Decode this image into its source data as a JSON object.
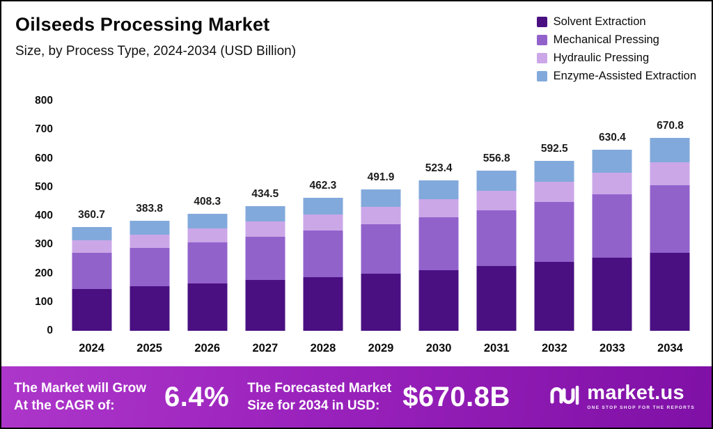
{
  "header": {
    "title": "Oilseeds Processing Market",
    "subtitle": "Size, by Process Type, 2024-2034 (USD Billion)"
  },
  "chart_data": {
    "type": "bar",
    "stacked": true,
    "title": "Oilseeds Processing Market Size, by Process Type, 2024-2034 (USD Billion)",
    "categories": [
      "2024",
      "2025",
      "2026",
      "2027",
      "2028",
      "2029",
      "2030",
      "2031",
      "2032",
      "2033",
      "2034"
    ],
    "series": [
      {
        "name": "Solvent Extraction",
        "color": "#4a1082",
        "values": [
          146.1,
          155.4,
          165.4,
          176.0,
          187.2,
          199.2,
          212.0,
          225.5,
          240.0,
          255.3,
          271.7
        ]
      },
      {
        "name": "Mechanical Pressing",
        "color": "#9262cb",
        "values": [
          126.2,
          134.3,
          142.9,
          152.1,
          161.8,
          172.2,
          183.2,
          194.9,
          207.4,
          220.6,
          234.8
        ]
      },
      {
        "name": "Hydraulic Pressing",
        "color": "#cba7e8",
        "values": [
          43.3,
          46.1,
          49.0,
          52.1,
          55.5,
          59.0,
          62.8,
          66.8,
          71.1,
          75.6,
          80.5
        ]
      },
      {
        "name": "Enzyme-Assisted Extraction",
        "color": "#82a9db",
        "values": [
          45.1,
          48.0,
          51.0,
          54.3,
          57.8,
          61.5,
          65.4,
          69.6,
          74.0,
          78.9,
          83.8
        ]
      }
    ],
    "totals": [
      360.7,
      383.8,
      408.3,
      434.5,
      462.3,
      491.9,
      523.4,
      556.8,
      592.5,
      630.4,
      670.8
    ],
    "xlabel": "",
    "ylabel": "",
    "ylim": [
      0,
      800
    ],
    "yticks": [
      0,
      100,
      200,
      300,
      400,
      500,
      600,
      700,
      800
    ],
    "grid": false,
    "legend_position": "top-right"
  },
  "footer": {
    "left_line1": "The Market will Grow",
    "left_line2": "At the CAGR of:",
    "cagr": "6.4%",
    "mid_line1": "The Forecasted Market",
    "mid_line2": "Size for 2034 in USD:",
    "forecast": "$670.8B",
    "brand": "market.us",
    "brand_tagline": "ONE STOP SHOP FOR THE REPORTS"
  }
}
